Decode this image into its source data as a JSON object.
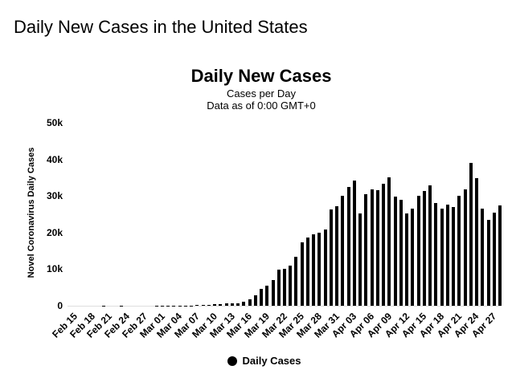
{
  "page": {
    "title": "Daily New Cases in the United States"
  },
  "chart": {
    "title": "Daily New Cases",
    "subtitle_line1": "Cases per Day",
    "subtitle_line2": "Data as of 0:00 GMT+0",
    "y_axis_title": "Novel Coronavirus Daily Cases",
    "legend_label": "Daily Cases",
    "colors": {
      "bar": "#000000",
      "axis_line": "#dddddd",
      "text": "#000000",
      "background": "#ffffff"
    }
  },
  "chart_data": {
    "type": "bar",
    "title": "Daily New Cases",
    "subtitle": "Cases per Day",
    "note": "Data as of 0:00 GMT+0",
    "series_name": "Daily Cases",
    "xlabel": "",
    "ylabel": "Novel Coronavirus Daily Cases",
    "ylim": [
      0,
      50000
    ],
    "grid": false,
    "legend_position": "bottom-center",
    "bar_color": "#000000",
    "y_ticks": [
      {
        "label": "0",
        "value": 0
      },
      {
        "label": "10k",
        "value": 10000
      },
      {
        "label": "20k",
        "value": 20000
      },
      {
        "label": "30k",
        "value": 30000
      },
      {
        "label": "40k",
        "value": 40000
      },
      {
        "label": "50k",
        "value": 50000
      }
    ],
    "x_tick_every": 3,
    "x": [
      "Feb 15",
      "Feb 16",
      "Feb 17",
      "Feb 18",
      "Feb 19",
      "Feb 20",
      "Feb 21",
      "Feb 22",
      "Feb 23",
      "Feb 24",
      "Feb 25",
      "Feb 26",
      "Feb 27",
      "Feb 28",
      "Feb 29",
      "Mar 01",
      "Mar 02",
      "Mar 03",
      "Mar 04",
      "Mar 05",
      "Mar 06",
      "Mar 07",
      "Mar 08",
      "Mar 09",
      "Mar 10",
      "Mar 11",
      "Mar 12",
      "Mar 13",
      "Mar 14",
      "Mar 15",
      "Mar 16",
      "Mar 17",
      "Mar 18",
      "Mar 19",
      "Mar 20",
      "Mar 21",
      "Mar 22",
      "Mar 23",
      "Mar 24",
      "Mar 25",
      "Mar 26",
      "Mar 27",
      "Mar 28",
      "Mar 29",
      "Mar 30",
      "Mar 31",
      "Apr 01",
      "Apr 02",
      "Apr 03",
      "Apr 04",
      "Apr 05",
      "Apr 06",
      "Apr 07",
      "Apr 08",
      "Apr 09",
      "Apr 10",
      "Apr 11",
      "Apr 12",
      "Apr 13",
      "Apr 14",
      "Apr 15",
      "Apr 16",
      "Apr 17",
      "Apr 18",
      "Apr 19",
      "Apr 20",
      "Apr 21",
      "Apr 22",
      "Apr 23",
      "Apr 24",
      "Apr 25",
      "Apr 26",
      "Apr 27",
      "Apr 28",
      "Apr 29"
    ],
    "values": [
      0,
      0,
      1,
      1,
      0,
      1,
      19,
      0,
      0,
      18,
      6,
      6,
      1,
      4,
      7,
      23,
      20,
      31,
      53,
      65,
      105,
      95,
      122,
      180,
      287,
      371,
      444,
      585,
      662,
      723,
      1046,
      1755,
      2807,
      4530,
      5594,
      7123,
      9883,
      10189,
      11075,
      13355,
      17224,
      18691,
      19452,
      19913,
      20921,
      26365,
      27157,
      30081,
      32425,
      34196,
      25316,
      30561,
      31709,
      31484,
      33323,
      35098,
      29861,
      28917,
      25306,
      26641,
      30107,
      31451,
      32922,
      28123,
      26543,
      27539,
      26979,
      30017,
      31906,
      38958,
      34868,
      26509,
      23366,
      25409,
      27327
    ]
  }
}
